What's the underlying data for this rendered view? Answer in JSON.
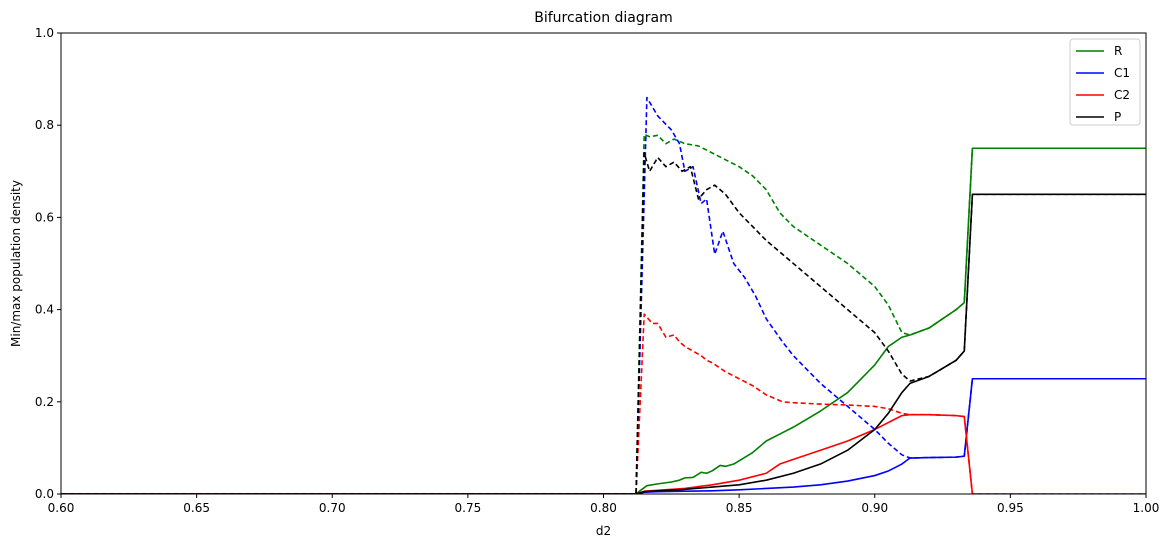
{
  "chart_data": {
    "type": "line",
    "title": "Bifurcation diagram",
    "xlabel": "d2",
    "ylabel": "Min/max population density",
    "xlim": [
      0.6,
      1.0
    ],
    "ylim": [
      0.0,
      1.0
    ],
    "xticks": [
      "0.60",
      "0.65",
      "0.70",
      "0.75",
      "0.80",
      "0.85",
      "0.90",
      "0.95",
      "1.00"
    ],
    "yticks": [
      "0.0",
      "0.2",
      "0.4",
      "0.6",
      "0.8",
      "1.0"
    ],
    "grid": false,
    "legend_position": "top-right",
    "series": [
      {
        "name": "R",
        "color": "#008000",
        "style": "solid",
        "x": [
          0.6,
          0.812,
          0.813,
          0.816,
          0.82,
          0.825,
          0.828,
          0.83,
          0.833,
          0.836,
          0.838,
          0.84,
          0.843,
          0.845,
          0.848,
          0.85,
          0.855,
          0.86,
          0.865,
          0.87,
          0.88,
          0.89,
          0.9,
          0.905,
          0.91,
          0.913,
          0.92,
          0.925,
          0.93,
          0.933,
          0.936,
          0.94,
          1.0
        ],
        "y": [
          0.0,
          0.0,
          0.005,
          0.018,
          0.022,
          0.026,
          0.03,
          0.035,
          0.036,
          0.047,
          0.045,
          0.05,
          0.062,
          0.06,
          0.065,
          0.072,
          0.09,
          0.115,
          0.13,
          0.145,
          0.18,
          0.22,
          0.28,
          0.32,
          0.34,
          0.345,
          0.36,
          0.38,
          0.4,
          0.415,
          0.75,
          0.75,
          0.75
        ]
      },
      {
        "name": "R max",
        "color": "#008000",
        "style": "dashed",
        "x": [
          0.6,
          0.812,
          0.815,
          0.817,
          0.82,
          0.823,
          0.826,
          0.83,
          0.835,
          0.84,
          0.845,
          0.85,
          0.855,
          0.86,
          0.865,
          0.87,
          0.88,
          0.89,
          0.9,
          0.905,
          0.91,
          0.913,
          0.92,
          0.93,
          0.933,
          0.936,
          0.94,
          1.0
        ],
        "y": [
          0.0,
          0.0,
          0.78,
          0.775,
          0.778,
          0.76,
          0.77,
          0.76,
          0.755,
          0.74,
          0.725,
          0.71,
          0.69,
          0.66,
          0.61,
          0.58,
          0.54,
          0.5,
          0.45,
          0.41,
          0.35,
          0.345,
          0.36,
          0.4,
          0.415,
          0.75,
          0.75,
          0.75
        ]
      },
      {
        "name": "C1",
        "color": "#0000ff",
        "style": "solid",
        "x": [
          0.6,
          0.812,
          0.815,
          0.82,
          0.83,
          0.84,
          0.85,
          0.86,
          0.87,
          0.88,
          0.89,
          0.9,
          0.905,
          0.91,
          0.913,
          0.92,
          0.93,
          0.933,
          0.936,
          0.94,
          1.0
        ],
        "y": [
          0.0,
          0.0,
          0.004,
          0.005,
          0.006,
          0.007,
          0.009,
          0.012,
          0.015,
          0.02,
          0.028,
          0.04,
          0.05,
          0.065,
          0.078,
          0.079,
          0.08,
          0.082,
          0.25,
          0.25,
          0.25
        ]
      },
      {
        "name": "C1 max",
        "color": "#0000ff",
        "style": "dashed",
        "x": [
          0.6,
          0.812,
          0.816,
          0.82,
          0.825,
          0.828,
          0.83,
          0.833,
          0.836,
          0.838,
          0.841,
          0.844,
          0.848,
          0.852,
          0.856,
          0.86,
          0.866,
          0.87,
          0.88,
          0.89,
          0.9,
          0.905,
          0.91,
          0.913,
          0.92,
          0.93,
          0.933,
          0.936,
          0.94,
          1.0
        ],
        "y": [
          0.0,
          0.0,
          0.86,
          0.82,
          0.79,
          0.76,
          0.7,
          0.71,
          0.63,
          0.64,
          0.52,
          0.57,
          0.5,
          0.47,
          0.43,
          0.38,
          0.33,
          0.3,
          0.24,
          0.19,
          0.14,
          0.11,
          0.085,
          0.078,
          0.079,
          0.08,
          0.082,
          0.25,
          0.25,
          0.25
        ]
      },
      {
        "name": "C2",
        "color": "#ff0000",
        "style": "solid",
        "x": [
          0.6,
          0.812,
          0.815,
          0.82,
          0.83,
          0.84,
          0.85,
          0.86,
          0.865,
          0.87,
          0.88,
          0.89,
          0.9,
          0.905,
          0.91,
          0.913,
          0.92,
          0.93,
          0.933,
          0.936,
          0.94,
          1.0
        ],
        "y": [
          0.0,
          0.0,
          0.006,
          0.008,
          0.012,
          0.02,
          0.03,
          0.045,
          0.065,
          0.075,
          0.095,
          0.115,
          0.14,
          0.155,
          0.17,
          0.172,
          0.172,
          0.17,
          0.168,
          0.0,
          0.0,
          0.0
        ]
      },
      {
        "name": "C2 max",
        "color": "#ff0000",
        "style": "dashed",
        "x": [
          0.6,
          0.812,
          0.815,
          0.818,
          0.82,
          0.823,
          0.826,
          0.828,
          0.83,
          0.833,
          0.836,
          0.838,
          0.84,
          0.845,
          0.85,
          0.855,
          0.86,
          0.866,
          0.87,
          0.88,
          0.89,
          0.9,
          0.905,
          0.91,
          0.913,
          0.92,
          0.93,
          0.933,
          0.936,
          0.94,
          1.0
        ],
        "y": [
          0.0,
          0.0,
          0.39,
          0.37,
          0.37,
          0.34,
          0.345,
          0.33,
          0.32,
          0.31,
          0.3,
          0.29,
          0.285,
          0.265,
          0.25,
          0.235,
          0.215,
          0.2,
          0.198,
          0.195,
          0.193,
          0.19,
          0.185,
          0.175,
          0.172,
          0.172,
          0.17,
          0.168,
          0.0,
          0.0,
          0.0
        ]
      },
      {
        "name": "P",
        "color": "#000000",
        "style": "solid",
        "x": [
          0.6,
          0.812,
          0.815,
          0.82,
          0.83,
          0.84,
          0.85,
          0.86,
          0.87,
          0.88,
          0.89,
          0.9,
          0.905,
          0.91,
          0.913,
          0.92,
          0.93,
          0.933,
          0.936,
          0.94,
          1.0
        ],
        "y": [
          0.0,
          0.0,
          0.005,
          0.007,
          0.01,
          0.015,
          0.02,
          0.03,
          0.045,
          0.065,
          0.095,
          0.14,
          0.175,
          0.22,
          0.24,
          0.255,
          0.29,
          0.31,
          0.65,
          0.65,
          0.65
        ]
      },
      {
        "name": "P max",
        "color": "#000000",
        "style": "dashed",
        "x": [
          0.6,
          0.812,
          0.815,
          0.817,
          0.82,
          0.823,
          0.826,
          0.829,
          0.832,
          0.835,
          0.838,
          0.841,
          0.845,
          0.85,
          0.855,
          0.86,
          0.866,
          0.87,
          0.88,
          0.89,
          0.9,
          0.905,
          0.91,
          0.913,
          0.92,
          0.93,
          0.933,
          0.936,
          0.94,
          1.0
        ],
        "y": [
          0.0,
          0.0,
          0.74,
          0.7,
          0.73,
          0.71,
          0.72,
          0.7,
          0.71,
          0.64,
          0.66,
          0.67,
          0.65,
          0.61,
          0.58,
          0.55,
          0.52,
          0.5,
          0.45,
          0.4,
          0.35,
          0.31,
          0.26,
          0.245,
          0.255,
          0.29,
          0.31,
          0.65,
          0.65,
          0.65
        ]
      }
    ],
    "legend": [
      {
        "label": "R",
        "color": "#008000"
      },
      {
        "label": "C1",
        "color": "#0000ff"
      },
      {
        "label": "C2",
        "color": "#ff0000"
      },
      {
        "label": "P",
        "color": "#000000"
      }
    ]
  }
}
